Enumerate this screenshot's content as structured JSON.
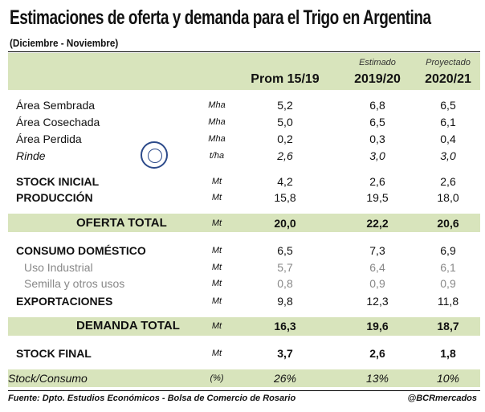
{
  "title": "Estimaciones de oferta y demanda para el Trigo en Argentina",
  "subtitle": "(Diciembre - Noviembre)",
  "header": {
    "col1": "Prom 15/19",
    "col2_note": "Estimado",
    "col2": "2019/20",
    "col3_note": "Proyectado",
    "col3": "2020/21"
  },
  "logo": {
    "text": "BOLSA DE COMERCIO DE ROSARIO"
  },
  "rows": [
    {
      "label": "Área Sembrada",
      "unit": "Mha",
      "v1": "5,2",
      "v2": "6,8",
      "v3": "6,5"
    },
    {
      "label": "Área Cosechada",
      "unit": "Mha",
      "v1": "5,0",
      "v2": "6,5",
      "v3": "6,1"
    },
    {
      "label": "Área Perdida",
      "unit": "Mha",
      "v1": "0,2",
      "v2": "0,3",
      "v3": "0,4"
    },
    {
      "label": "Rinde",
      "unit": "t/ha",
      "v1": "2,6",
      "v2": "3,0",
      "v3": "3,0"
    },
    {
      "label": "STOCK INICIAL",
      "unit": "Mt",
      "v1": "4,2",
      "v2": "2,6",
      "v3": "2,6"
    },
    {
      "label": "PRODUCCIÓN",
      "unit": "Mt",
      "v1": "15,8",
      "v2": "19,5",
      "v3": "18,0"
    },
    {
      "label": "OFERTA TOTAL",
      "unit": "Mt",
      "v1": "20,0",
      "v2": "22,2",
      "v3": "20,6"
    },
    {
      "label": "CONSUMO DOMÉSTICO",
      "unit": "Mt",
      "v1": "6,5",
      "v2": "7,3",
      "v3": "6,9"
    },
    {
      "label": "Uso Industrial",
      "unit": "Mt",
      "v1": "5,7",
      "v2": "6,4",
      "v3": "6,1"
    },
    {
      "label": "Semilla y otros usos",
      "unit": "Mt",
      "v1": "0,8",
      "v2": "0,9",
      "v3": "0,9"
    },
    {
      "label": "EXPORTACIONES",
      "unit": "Mt",
      "v1": "9,8",
      "v2": "12,3",
      "v3": "11,8"
    },
    {
      "label": "DEMANDA TOTAL",
      "unit": "Mt",
      "v1": "16,3",
      "v2": "19,6",
      "v3": "18,7"
    },
    {
      "label": "STOCK FINAL",
      "unit": "Mt",
      "v1": "3,7",
      "v2": "2,6",
      "v3": "1,8"
    },
    {
      "label": "Stock/Consumo",
      "unit": "(%)",
      "v1": "26%",
      "v2": "13%",
      "v3": "10%"
    }
  ],
  "footer": {
    "source": "Fuente: Dpto. Estudios Económicos - Bolsa de Comercio de Rosario",
    "handle": "@BCRmercados"
  }
}
